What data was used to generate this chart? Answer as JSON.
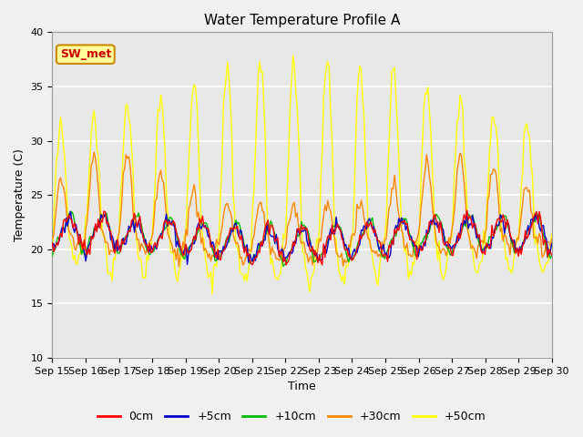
{
  "title": "Water Temperature Profile A",
  "xlabel": "Time",
  "ylabel": "Temperature (C)",
  "ylim": [
    10,
    40
  ],
  "series_colors": {
    "0cm": "#ff0000",
    "+5cm": "#0000cc",
    "+10cm": "#00bb00",
    "+30cm": "#ff8800",
    "+50cm": "#ffff00"
  },
  "legend_labels": [
    "0cm",
    "+5cm",
    "+10cm",
    "+30cm",
    "+50cm"
  ],
  "legend_colors": [
    "#ff0000",
    "#0000cc",
    "#00bb00",
    "#ff8800",
    "#ffff00"
  ],
  "annotation_text": "SW_met",
  "annotation_color": "#cc0000",
  "annotation_bg": "#ffff99",
  "annotation_border": "#cc8800",
  "yticks": [
    10,
    15,
    20,
    25,
    30,
    35,
    40
  ],
  "gridcolor": "#ffffff",
  "plot_bg": "#e8e8e8",
  "fig_bg": "#f0f0f0",
  "linewidth": 1.0
}
